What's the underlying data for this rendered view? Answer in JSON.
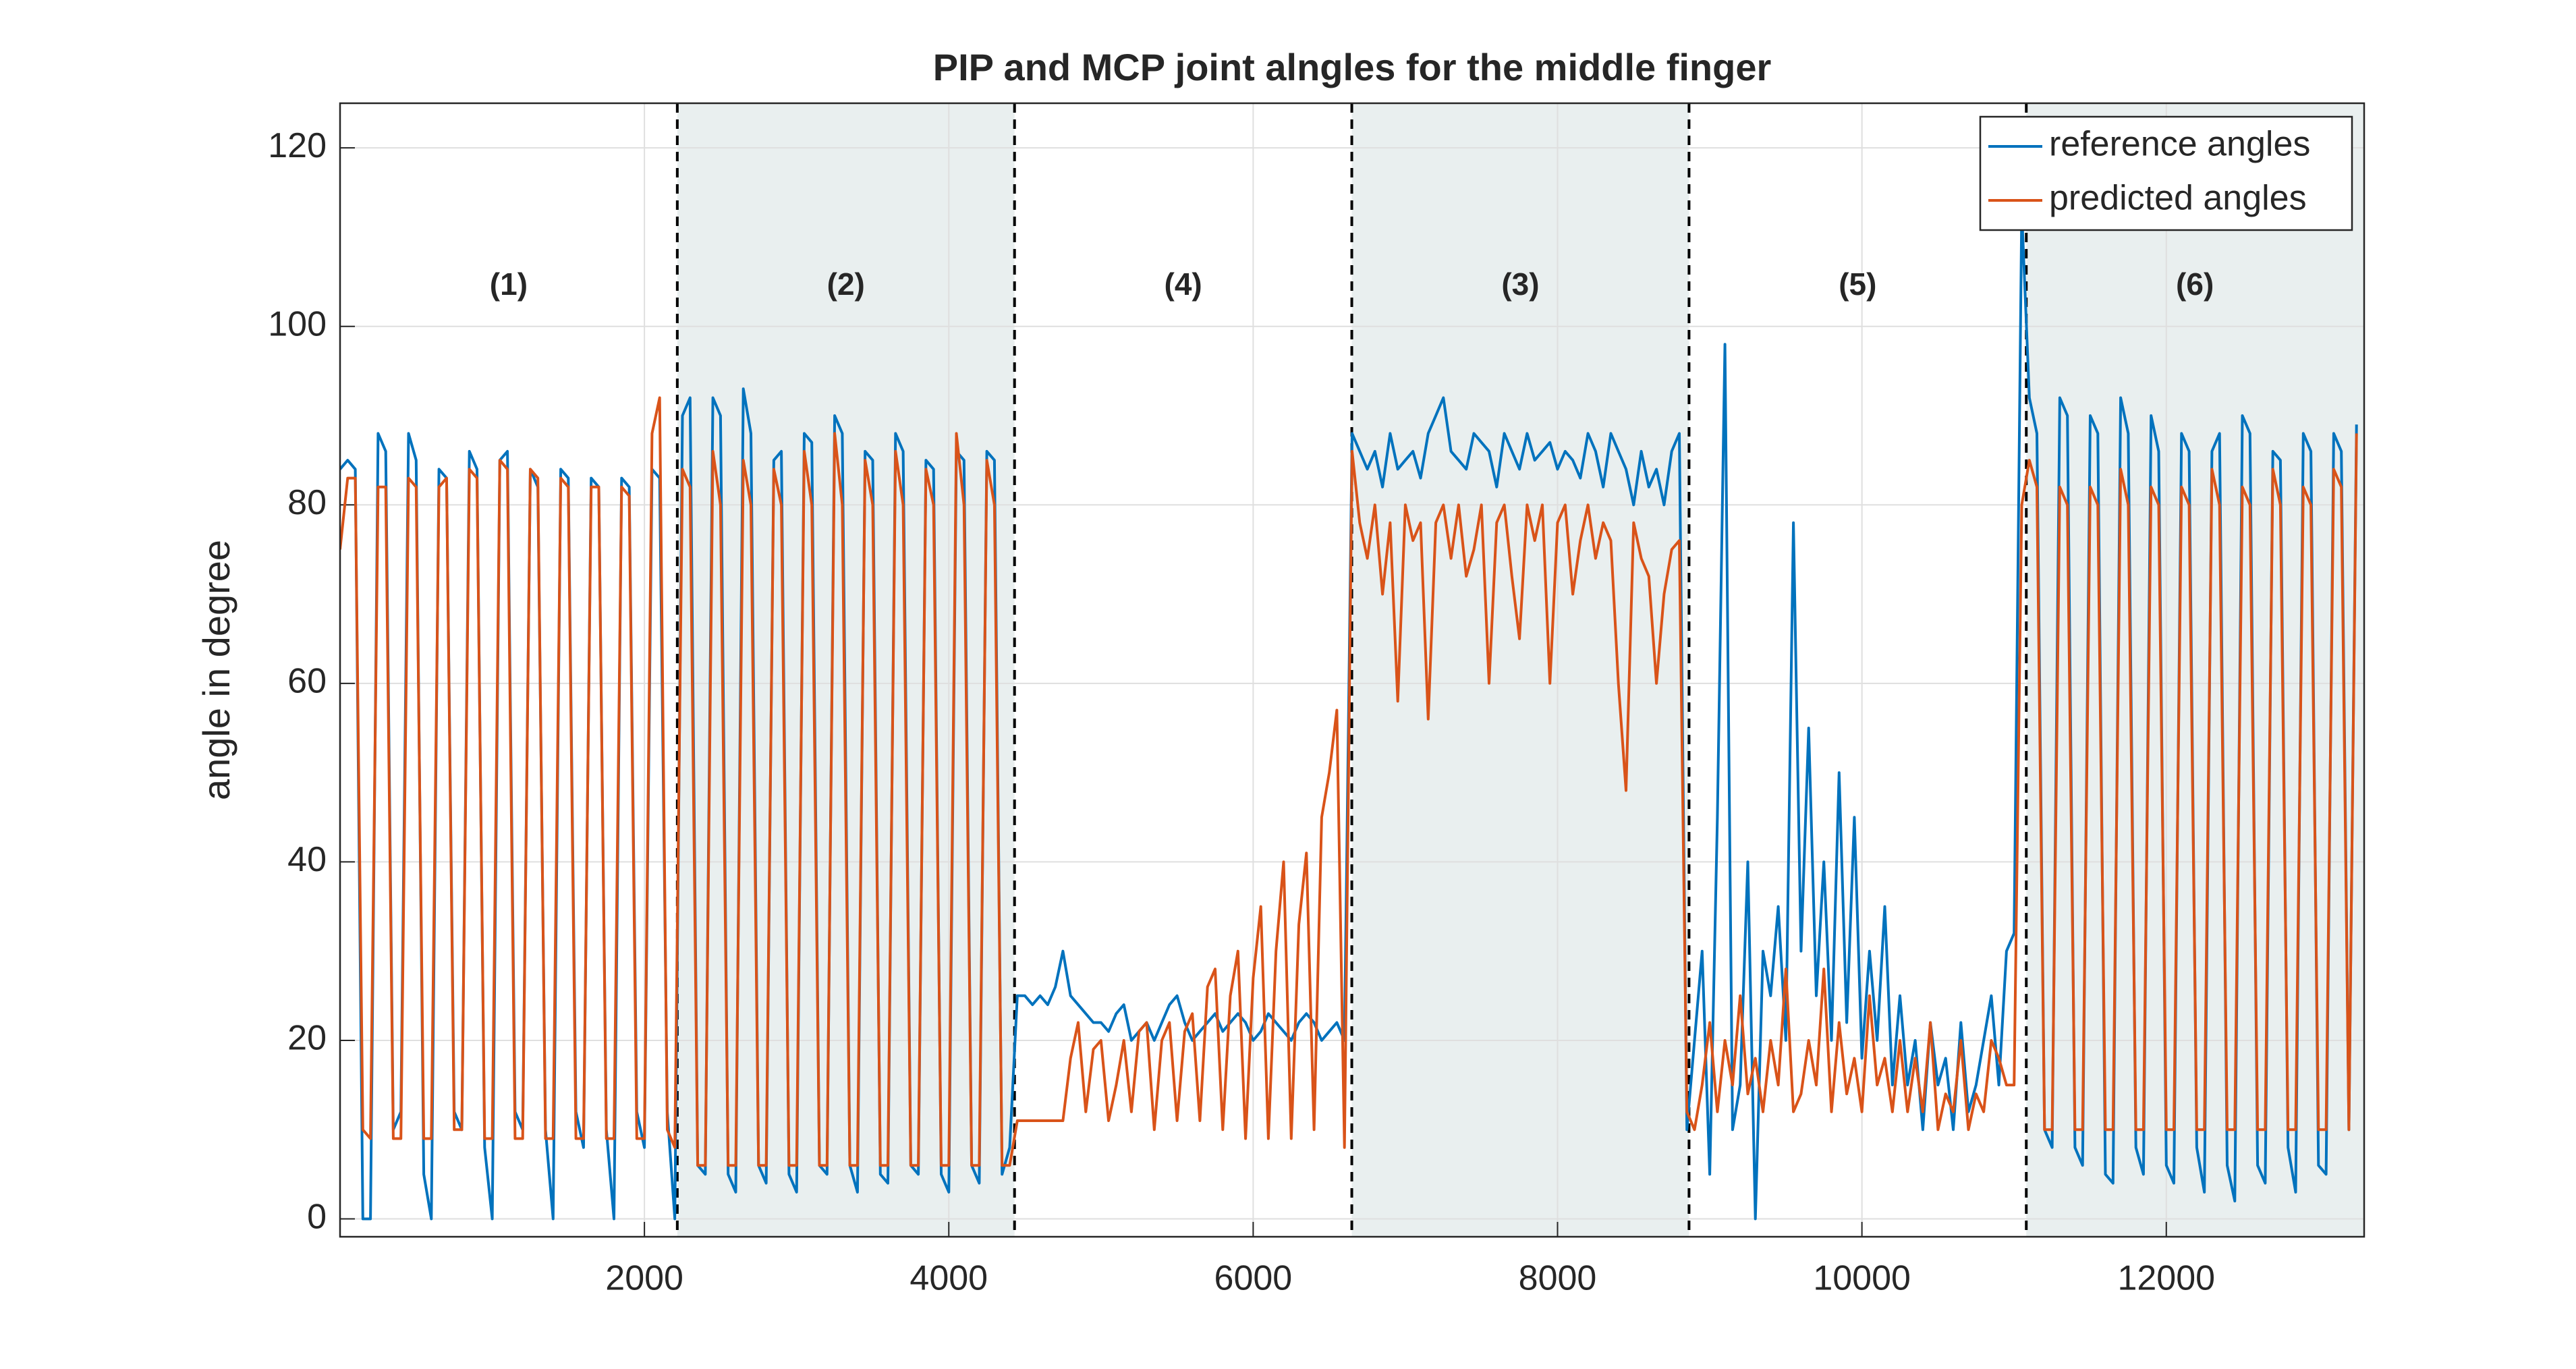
{
  "chart_data": {
    "type": "line",
    "title": "PIP and MCP joint alngles for the middle finger",
    "y_label": "angle in degree",
    "xlim": [
      0,
      13300
    ],
    "xticks": [
      2000,
      4000,
      6000,
      8000,
      10000,
      12000
    ],
    "ylim": [
      -2,
      125
    ],
    "yticks": [
      0,
      20,
      40,
      60,
      80,
      100,
      120
    ],
    "grid": true,
    "legend_position": "northeast",
    "regions": [
      {
        "label": "(1)",
        "xlim": [
          0,
          2216
        ],
        "shaded": false
      },
      {
        "label": "(2)",
        "xlim": [
          2216,
          4432
        ],
        "shaded": true
      },
      {
        "label": "(4)",
        "xlim": [
          4432,
          6648
        ],
        "shaded": false
      },
      {
        "label": "(3)",
        "xlim": [
          6648,
          8864
        ],
        "shaded": true
      },
      {
        "label": "(5)",
        "xlim": [
          8864,
          11080
        ],
        "shaded": false
      },
      {
        "label": "(6)",
        "xlim": [
          11080,
          13296
        ],
        "shaded": true
      }
    ],
    "shade_color": "#e9efef",
    "x": [
      0,
      50,
      100,
      150,
      200,
      250,
      300,
      350,
      400,
      450,
      500,
      550,
      600,
      650,
      700,
      750,
      800,
      850,
      900,
      950,
      1000,
      1050,
      1100,
      1150,
      1200,
      1250,
      1300,
      1350,
      1400,
      1450,
      1500,
      1550,
      1600,
      1650,
      1700,
      1750,
      1800,
      1850,
      1900,
      1950,
      2000,
      2050,
      2100,
      2150,
      2200,
      2250,
      2300,
      2350,
      2400,
      2450,
      2500,
      2550,
      2600,
      2650,
      2700,
      2750,
      2800,
      2850,
      2900,
      2950,
      3000,
      3050,
      3100,
      3150,
      3200,
      3250,
      3300,
      3350,
      3400,
      3450,
      3500,
      3550,
      3600,
      3650,
      3700,
      3750,
      3800,
      3850,
      3900,
      3950,
      4000,
      4050,
      4100,
      4150,
      4200,
      4250,
      4300,
      4350,
      4400,
      4450,
      4500,
      4550,
      4600,
      4650,
      4700,
      4750,
      4800,
      4850,
      4900,
      4950,
      5000,
      5050,
      5100,
      5150,
      5200,
      5250,
      5300,
      5350,
      5400,
      5450,
      5500,
      5550,
      5600,
      5650,
      5700,
      5750,
      5800,
      5850,
      5900,
      5950,
      6000,
      6050,
      6100,
      6150,
      6200,
      6250,
      6300,
      6350,
      6400,
      6450,
      6500,
      6550,
      6600,
      6650,
      6700,
      6750,
      6800,
      6850,
      6900,
      6950,
      7000,
      7050,
      7100,
      7150,
      7200,
      7250,
      7300,
      7350,
      7400,
      7450,
      7500,
      7550,
      7600,
      7650,
      7700,
      7750,
      7800,
      7850,
      7900,
      7950,
      8000,
      8050,
      8100,
      8150,
      8200,
      8250,
      8300,
      8350,
      8400,
      8450,
      8500,
      8550,
      8600,
      8650,
      8700,
      8750,
      8800,
      8850,
      8900,
      8950,
      9000,
      9050,
      9100,
      9150,
      9200,
      9250,
      9300,
      9350,
      9400,
      9450,
      9500,
      9550,
      9600,
      9650,
      9700,
      9750,
      9800,
      9850,
      9900,
      9950,
      10000,
      10050,
      10100,
      10150,
      10200,
      10250,
      10300,
      10350,
      10400,
      10450,
      10500,
      10550,
      10600,
      10650,
      10700,
      10750,
      10800,
      10850,
      10900,
      10950,
      11000,
      11050,
      11100,
      11150,
      11200,
      11250,
      11300,
      11350,
      11400,
      11450,
      11500,
      11550,
      11600,
      11650,
      11700,
      11750,
      11800,
      11850,
      11900,
      11950,
      12000,
      12050,
      12100,
      12150,
      12200,
      12250,
      12300,
      12350,
      12400,
      12450,
      12500,
      12550,
      12600,
      12650,
      12700,
      12750,
      12800,
      12850,
      12900,
      12950,
      13000,
      13050,
      13100,
      13150,
      13200,
      13250
    ],
    "series": [
      {
        "name": "reference angles",
        "color": "#0072bd",
        "values": [
          84,
          85,
          84,
          0,
          0,
          88,
          86,
          10,
          12,
          88,
          85,
          5,
          0,
          84,
          83,
          12,
          10,
          86,
          84,
          8,
          0,
          85,
          86,
          12,
          10,
          84,
          82,
          10,
          0,
          84,
          83,
          12,
          8,
          83,
          82,
          10,
          0,
          83,
          82,
          12,
          8,
          84,
          83,
          12,
          0,
          90,
          92,
          6,
          5,
          92,
          90,
          5,
          3,
          93,
          88,
          6,
          4,
          85,
          86,
          5,
          3,
          88,
          87,
          6,
          5,
          90,
          88,
          6,
          3,
          86,
          85,
          5,
          4,
          88,
          86,
          6,
          5,
          85,
          84,
          5,
          3,
          86,
          85,
          6,
          4,
          86,
          85,
          5,
          8,
          25,
          25,
          24,
          25,
          24,
          26,
          30,
          25,
          24,
          23,
          22,
          22,
          21,
          23,
          24,
          20,
          21,
          22,
          20,
          22,
          24,
          25,
          22,
          20,
          21,
          22,
          23,
          21,
          22,
          23,
          22,
          20,
          21,
          23,
          22,
          21,
          20,
          22,
          23,
          22,
          20,
          21,
          22,
          20,
          88,
          86,
          84,
          86,
          82,
          88,
          84,
          85,
          86,
          83,
          88,
          90,
          92,
          86,
          85,
          84,
          88,
          87,
          86,
          82,
          88,
          86,
          84,
          88,
          85,
          86,
          87,
          84,
          86,
          85,
          83,
          88,
          86,
          82,
          88,
          86,
          84,
          80,
          86,
          82,
          84,
          80,
          86,
          88,
          10,
          20,
          30,
          5,
          45,
          98,
          10,
          15,
          40,
          0,
          30,
          25,
          35,
          20,
          78,
          30,
          55,
          25,
          40,
          20,
          50,
          22,
          45,
          18,
          30,
          20,
          35,
          15,
          25,
          15,
          20,
          10,
          22,
          15,
          18,
          10,
          22,
          12,
          15,
          20,
          25,
          15,
          30,
          32,
          113,
          92,
          88,
          10,
          8,
          92,
          90,
          8,
          6,
          90,
          88,
          5,
          4,
          92,
          88,
          8,
          5,
          90,
          86,
          6,
          4,
          88,
          86,
          8,
          3,
          86,
          88,
          6,
          2,
          90,
          88,
          6,
          4,
          86,
          85,
          8,
          3,
          88,
          86,
          6,
          5,
          88,
          86,
          10,
          89
        ]
      },
      {
        "name": "predicted angles",
        "color": "#d95319",
        "values": [
          75,
          83,
          83,
          10,
          9,
          82,
          82,
          9,
          9,
          83,
          82,
          9,
          9,
          82,
          83,
          10,
          10,
          84,
          83,
          9,
          9,
          85,
          84,
          9,
          9,
          84,
          83,
          9,
          9,
          83,
          82,
          9,
          9,
          82,
          82,
          9,
          9,
          82,
          81,
          9,
          9,
          88,
          92,
          10,
          8,
          84,
          82,
          6,
          6,
          86,
          80,
          6,
          6,
          85,
          80,
          6,
          6,
          84,
          80,
          6,
          6,
          86,
          80,
          6,
          6,
          88,
          80,
          6,
          6,
          85,
          80,
          6,
          6,
          86,
          80,
          6,
          6,
          84,
          80,
          6,
          6,
          88,
          80,
          6,
          6,
          85,
          80,
          6,
          6,
          11,
          11,
          11,
          11,
          11,
          11,
          11,
          18,
          22,
          12,
          19,
          20,
          11,
          15,
          20,
          12,
          21,
          22,
          10,
          20,
          22,
          11,
          21,
          23,
          11,
          26,
          28,
          10,
          25,
          30,
          9,
          27,
          35,
          9,
          30,
          40,
          9,
          33,
          41,
          10,
          45,
          50,
          57,
          8,
          86,
          78,
          74,
          80,
          70,
          78,
          58,
          80,
          76,
          78,
          56,
          78,
          80,
          74,
          80,
          72,
          75,
          80,
          60,
          78,
          80,
          72,
          65,
          80,
          76,
          80,
          60,
          78,
          80,
          70,
          76,
          80,
          74,
          78,
          76,
          60,
          48,
          78,
          74,
          72,
          60,
          70,
          75,
          76,
          12,
          10,
          15,
          22,
          12,
          20,
          15,
          25,
          14,
          18,
          12,
          20,
          15,
          28,
          12,
          14,
          20,
          15,
          28,
          12,
          22,
          14,
          18,
          12,
          25,
          15,
          18,
          12,
          20,
          12,
          18,
          12,
          22,
          10,
          14,
          12,
          20,
          10,
          14,
          12,
          20,
          18,
          15,
          15,
          80,
          85,
          82,
          10,
          10,
          82,
          80,
          10,
          10,
          82,
          80,
          10,
          10,
          84,
          80,
          10,
          10,
          82,
          80,
          10,
          10,
          82,
          80,
          10,
          10,
          84,
          80,
          10,
          10,
          82,
          80,
          10,
          10,
          84,
          80,
          10,
          10,
          82,
          80,
          10,
          10,
          84,
          82,
          10,
          88
        ]
      }
    ]
  }
}
